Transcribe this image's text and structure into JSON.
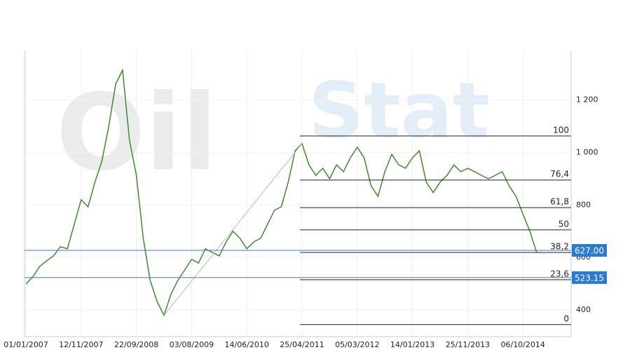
{
  "chart_data": {
    "type": "line",
    "watermark": [
      "Oil",
      "Stat"
    ],
    "categories": [
      "01/01/2007",
      null,
      null,
      null,
      null,
      null,
      null,
      null,
      "12/11/2007",
      null,
      null,
      null,
      null,
      null,
      null,
      null,
      "22/09/2008",
      null,
      null,
      null,
      null,
      null,
      null,
      null,
      "03/08/2009",
      null,
      null,
      null,
      null,
      null,
      null,
      null,
      "14/06/2010",
      null,
      null,
      null,
      null,
      null,
      null,
      null,
      "25/04/2011",
      null,
      null,
      null,
      null,
      null,
      null,
      null,
      "05/03/2012",
      null,
      null,
      null,
      null,
      null,
      null,
      null,
      "14/01/2013",
      null,
      null,
      null,
      null,
      null,
      null,
      null,
      "25/11/2013",
      null,
      null,
      null,
      null,
      null,
      null,
      null,
      "06/10/2014",
      null,
      null
    ],
    "series": [
      {
        "color": "#3f8a2e",
        "values": [
          499,
          526,
          566,
          587,
          606,
          641,
          633,
          726,
          820,
          793,
          887,
          967,
          1100,
          1261,
          1314,
          1047,
          913,
          673,
          512,
          432,
          379,
          459,
          512,
          552,
          593,
          579,
          633,
          619,
          606,
          659,
          700,
          673,
          633,
          659,
          673,
          726,
          780,
          793,
          887,
          1007,
          1034,
          953,
          913,
          940,
          900,
          953,
          927,
          980,
          1020,
          980,
          873,
          833,
          927,
          993,
          953,
          940,
          980,
          1007,
          887,
          847,
          887,
          913,
          953,
          927,
          940,
          927,
          913,
          900,
          913,
          927,
          873,
          833,
          766,
          700,
          619
        ]
      }
    ],
    "ylim": [
      298,
      1389
    ],
    "yticks": [
      400,
      600,
      800,
      {
        "value": 1000,
        "label": "1 000"
      },
      {
        "value": 1200,
        "label": "1 200"
      }
    ],
    "fib_levels": [
      {
        "value": 1063,
        "label": "100"
      },
      {
        "value": 895,
        "label": "76,4"
      },
      {
        "value": 790,
        "label": "61,8"
      },
      {
        "value": 705,
        "label": "50"
      },
      {
        "value": 619,
        "label": "38,2"
      },
      {
        "value": 515,
        "label": "23,6"
      },
      {
        "value": 344,
        "label": "0"
      }
    ],
    "price_lines": [
      {
        "value": 627,
        "label": "627.00"
      },
      {
        "value": 523.15,
        "label": "523.15"
      }
    ],
    "grid": true
  }
}
